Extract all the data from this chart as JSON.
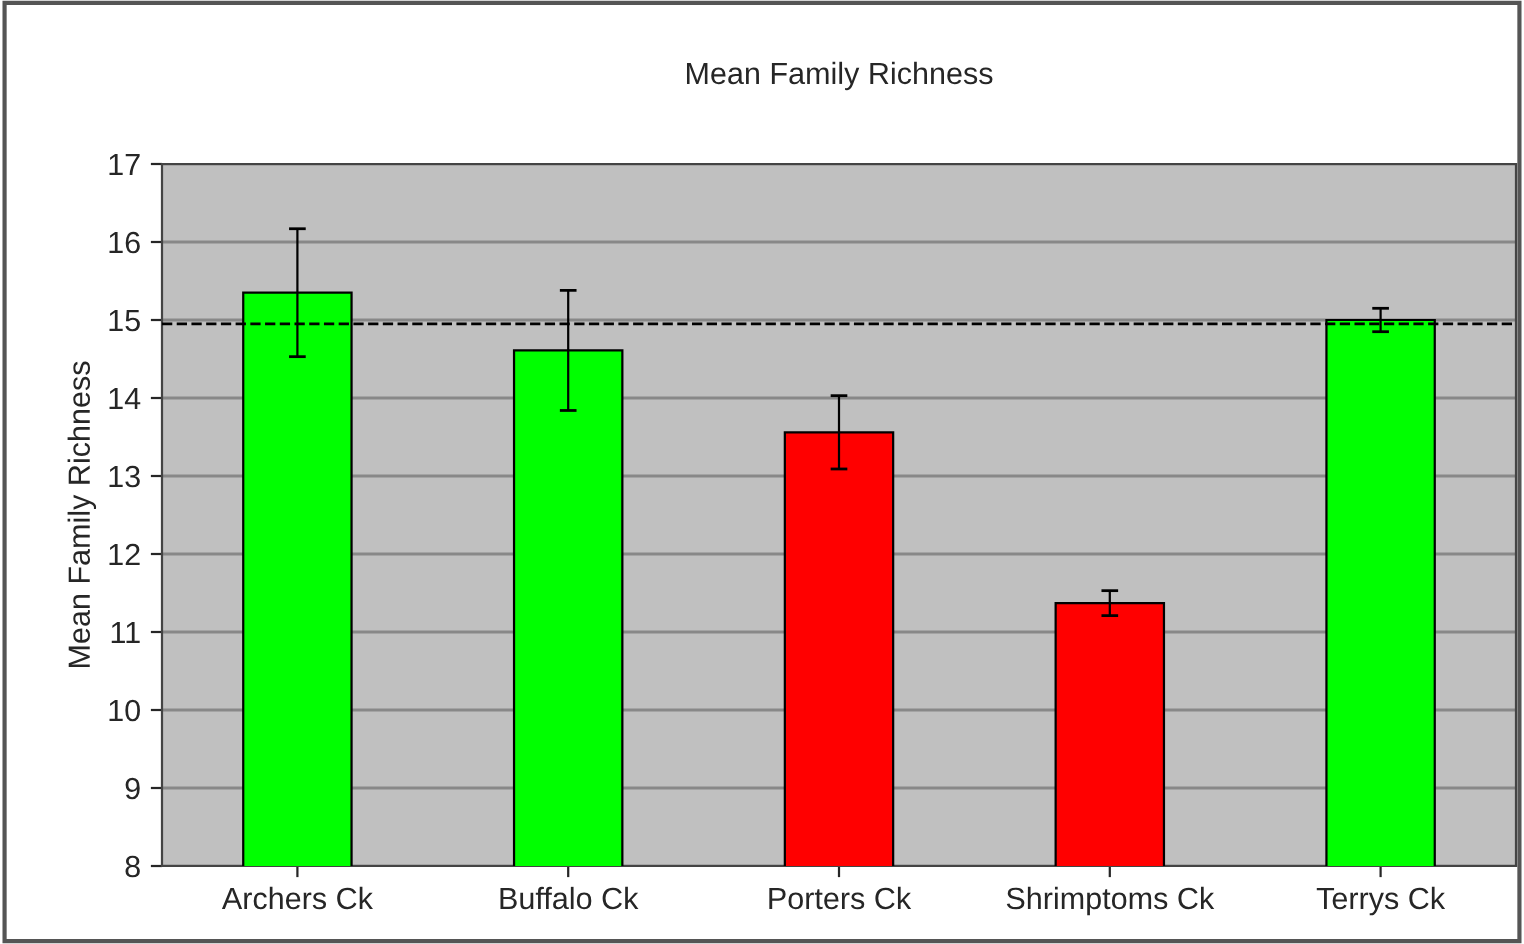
{
  "chart_data": {
    "type": "bar",
    "title": "Mean Family Richness",
    "ylabel": "Mean Family Richness",
    "categories": [
      "Archers Ck",
      "Buffalo Ck",
      "Porters Ck",
      "Shrimptoms Ck",
      "Terrys Ck"
    ],
    "values": [
      15.35,
      14.61,
      13.56,
      11.37,
      15.0
    ],
    "errors": [
      0.82,
      0.77,
      0.47,
      0.16,
      0.15
    ],
    "colors": [
      "#00ff00",
      "#00ff00",
      "#ff0000",
      "#ff0000",
      "#00ff00"
    ],
    "ylim": [
      8,
      17
    ],
    "yticks": [
      8,
      9,
      10,
      11,
      12,
      13,
      14,
      15,
      16,
      17
    ],
    "grid": "y",
    "legend": false,
    "ref_lines": [
      {
        "axis": "y",
        "value": 14.95,
        "line_style": "dashed",
        "color": "#000000"
      }
    ]
  }
}
